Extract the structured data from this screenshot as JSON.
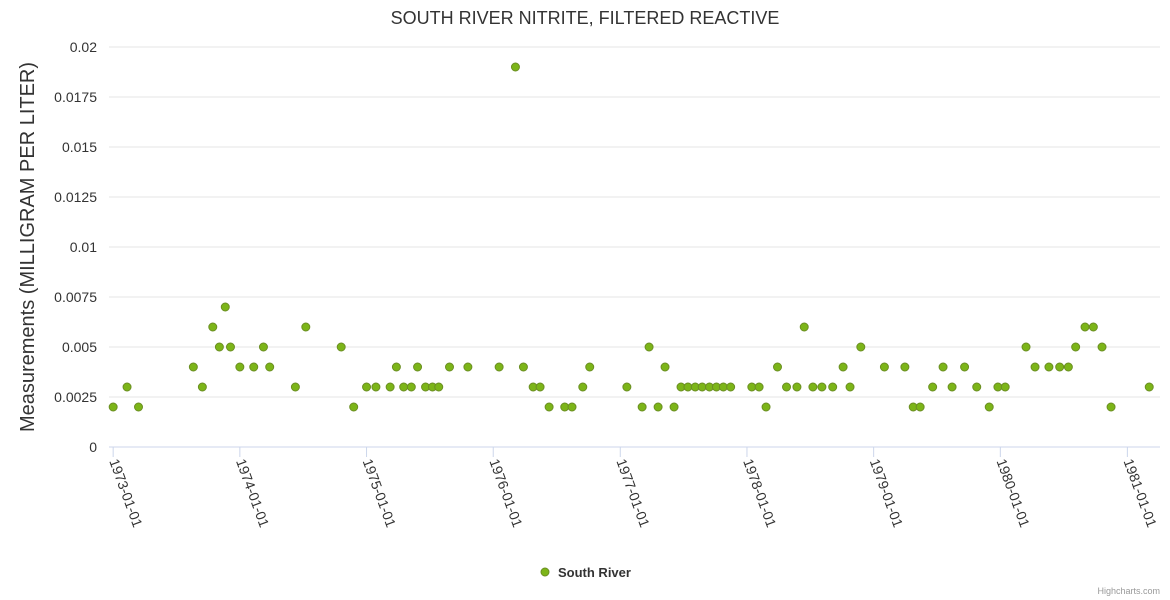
{
  "chart_data": {
    "type": "scatter",
    "title": "SOUTH RIVER NITRITE, FILTERED REACTIVE",
    "xlabel": "",
    "ylabel": "Measurements (MILLIGRAM PER LITER)",
    "x_type": "datetime",
    "xlim": [
      "1972-12-20",
      "1981-04-05"
    ],
    "ylim": [
      0,
      0.02
    ],
    "y_ticks": [
      0,
      0.0025,
      0.005,
      0.0075,
      0.01,
      0.0125,
      0.015,
      0.0175,
      0.02
    ],
    "y_tick_labels": [
      "0",
      "0.0025",
      "0.005",
      "0.0075",
      "0.01",
      "0.0125",
      "0.015",
      "0.0175",
      "0.02"
    ],
    "x_ticks": [
      "1973-01-01",
      "1974-01-01",
      "1975-01-01",
      "1976-01-01",
      "1977-01-01",
      "1978-01-01",
      "1979-01-01",
      "1980-01-01",
      "1981-01-01"
    ],
    "grid": true,
    "legend_position": "bottom-center",
    "series": [
      {
        "name": "South River",
        "color": "#7cb518",
        "points": [
          [
            "1973-01-01",
            0.002
          ],
          [
            "1973-02-10",
            0.003
          ],
          [
            "1973-03-15",
            0.002
          ],
          [
            "1973-08-20",
            0.004
          ],
          [
            "1973-09-15",
            0.003
          ],
          [
            "1973-10-15",
            0.006
          ],
          [
            "1973-11-03",
            0.005
          ],
          [
            "1973-11-20",
            0.007
          ],
          [
            "1973-12-05",
            0.005
          ],
          [
            "1974-01-01",
            0.004
          ],
          [
            "1974-02-10",
            0.004
          ],
          [
            "1974-03-10",
            0.005
          ],
          [
            "1974-03-28",
            0.004
          ],
          [
            "1974-06-10",
            0.003
          ],
          [
            "1974-07-10",
            0.006
          ],
          [
            "1974-10-20",
            0.005
          ],
          [
            "1974-11-25",
            0.002
          ],
          [
            "1975-01-01",
            0.003
          ],
          [
            "1975-01-28",
            0.003
          ],
          [
            "1975-03-10",
            0.003
          ],
          [
            "1975-03-28",
            0.004
          ],
          [
            "1975-04-18",
            0.003
          ],
          [
            "1975-05-10",
            0.003
          ],
          [
            "1975-05-28",
            0.004
          ],
          [
            "1975-06-20",
            0.003
          ],
          [
            "1975-07-10",
            0.003
          ],
          [
            "1975-07-28",
            0.003
          ],
          [
            "1975-08-28",
            0.004
          ],
          [
            "1975-10-20",
            0.004
          ],
          [
            "1976-01-18",
            0.004
          ],
          [
            "1976-03-05",
            0.019
          ],
          [
            "1976-03-28",
            0.004
          ],
          [
            "1976-04-25",
            0.003
          ],
          [
            "1976-05-15",
            0.003
          ],
          [
            "1976-06-10",
            0.002
          ],
          [
            "1976-07-25",
            0.002
          ],
          [
            "1976-08-15",
            0.002
          ],
          [
            "1976-09-15",
            0.003
          ],
          [
            "1976-10-05",
            0.004
          ],
          [
            "1977-01-20",
            0.003
          ],
          [
            "1977-03-05",
            0.002
          ],
          [
            "1977-03-25",
            0.005
          ],
          [
            "1977-04-20",
            0.002
          ],
          [
            "1977-05-10",
            0.004
          ],
          [
            "1977-06-05",
            0.002
          ],
          [
            "1977-06-25",
            0.003
          ],
          [
            "1977-07-15",
            0.003
          ],
          [
            "1977-08-05",
            0.003
          ],
          [
            "1977-08-25",
            0.003
          ],
          [
            "1977-09-15",
            0.003
          ],
          [
            "1977-10-05",
            0.003
          ],
          [
            "1977-10-25",
            0.003
          ],
          [
            "1977-11-15",
            0.003
          ],
          [
            "1978-01-15",
            0.003
          ],
          [
            "1978-02-05",
            0.003
          ],
          [
            "1978-02-25",
            0.002
          ],
          [
            "1978-03-30",
            0.004
          ],
          [
            "1978-04-25",
            0.003
          ],
          [
            "1978-05-25",
            0.003
          ],
          [
            "1978-06-15",
            0.006
          ],
          [
            "1978-07-10",
            0.003
          ],
          [
            "1978-08-05",
            0.003
          ],
          [
            "1978-09-05",
            0.003
          ],
          [
            "1978-10-05",
            0.004
          ],
          [
            "1978-10-25",
            0.003
          ],
          [
            "1978-11-25",
            0.005
          ],
          [
            "1979-02-01",
            0.004
          ],
          [
            "1979-04-01",
            0.004
          ],
          [
            "1979-04-25",
            0.002
          ],
          [
            "1979-05-15",
            0.002
          ],
          [
            "1979-06-20",
            0.003
          ],
          [
            "1979-07-20",
            0.004
          ],
          [
            "1979-08-15",
            0.003
          ],
          [
            "1979-09-20",
            0.004
          ],
          [
            "1979-10-25",
            0.003
          ],
          [
            "1979-11-30",
            0.002
          ],
          [
            "1979-12-25",
            0.003
          ],
          [
            "1980-01-15",
            0.003
          ],
          [
            "1980-03-15",
            0.005
          ],
          [
            "1980-04-10",
            0.004
          ],
          [
            "1980-05-20",
            0.004
          ],
          [
            "1980-06-20",
            0.004
          ],
          [
            "1980-07-15",
            0.004
          ],
          [
            "1980-08-05",
            0.005
          ],
          [
            "1980-09-01",
            0.006
          ],
          [
            "1980-09-25",
            0.006
          ],
          [
            "1980-10-20",
            0.005
          ],
          [
            "1980-11-15",
            0.002
          ],
          [
            "1981-03-05",
            0.003
          ]
        ]
      }
    ]
  },
  "credits": "Highcharts.com"
}
